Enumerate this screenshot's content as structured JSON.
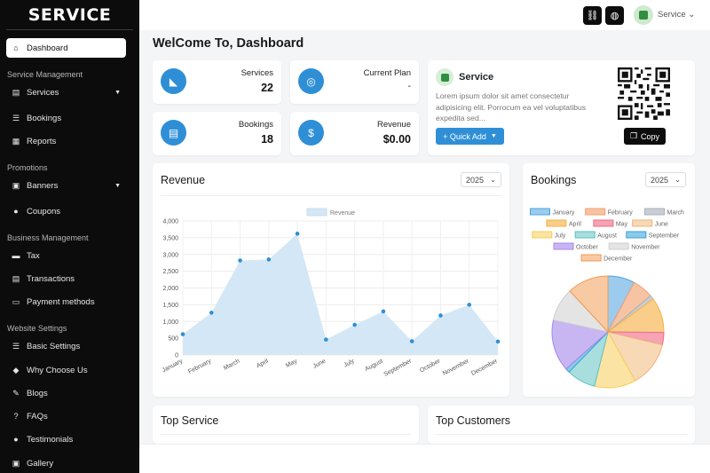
{
  "sidebar": {
    "brand": "SERVICE",
    "dashboard": "Dashboard",
    "sections": {
      "service_management": "Service Management",
      "promotions": "Promotions",
      "business_management": "Business Management",
      "website_settings": "Website Settings"
    },
    "items": {
      "services": "Services",
      "bookings": "Bookings",
      "reports": "Reports",
      "banners": "Banners",
      "coupons": "Coupons",
      "tax": "Tax",
      "transactions": "Transactions",
      "payment_methods": "Payment methods",
      "basic_settings": "Basic Settings",
      "why_choose_us": "Why Choose Us",
      "blogs": "Blogs",
      "faqs": "FAQs",
      "testimonials": "Testimonials",
      "gallery": "Gallery"
    }
  },
  "topbar": {
    "user_name": "Service"
  },
  "main": {
    "title": "WelCome To, Dashboard",
    "stats": {
      "services": {
        "label": "Services",
        "value": "22"
      },
      "current_plan": {
        "label": "Current Plan",
        "value": "-"
      },
      "bookings": {
        "label": "Bookings",
        "value": "18"
      },
      "revenue": {
        "label": "Revenue",
        "value": "$0.00"
      }
    },
    "service_card": {
      "title": "Service",
      "description": "Lorem ipsum dolor sit amet consectetur adipisicing elit. Porrocum ea vel voluptatibus expedita sed...",
      "quick_add": "+ Quick Add",
      "copy": "Copy"
    },
    "revenue_panel": {
      "title": "Revenue",
      "year": "2025"
    },
    "bookings_panel": {
      "title": "Bookings",
      "year": "2025"
    },
    "top_service": "Top Service",
    "top_customers": "Top Customers"
  },
  "colors": {
    "accent": "#2f8fd6",
    "sidebar_bg": "#0c0c0c",
    "area_fill": "#d4e7f6"
  },
  "chart_data": [
    {
      "type": "area",
      "legend": [
        "Revenue"
      ],
      "categories": [
        "January",
        "February",
        "March",
        "April",
        "May",
        "June",
        "July",
        "August",
        "September",
        "October",
        "November",
        "December"
      ],
      "series": [
        {
          "name": "Revenue",
          "values": [
            620,
            1260,
            2820,
            2850,
            3620,
            460,
            900,
            1300,
            410,
            1180,
            1500,
            400
          ]
        }
      ],
      "ylim": [
        0,
        4000
      ],
      "yticks": [
        "0",
        "500",
        "1,000",
        "1,500",
        "2,000",
        "2,500",
        "3,000",
        "3,500",
        "4,000"
      ],
      "grid": true,
      "legend_position": "top"
    },
    {
      "type": "pie",
      "legend_position": "top",
      "labels": [
        "January",
        "February",
        "March",
        "April",
        "May",
        "June",
        "July",
        "August",
        "September",
        "October",
        "November",
        "December"
      ],
      "values": [
        1.3,
        1.0,
        0.2,
        1.7,
        0.6,
        2.2,
        2.0,
        1.4,
        0.2,
        2.5,
        1.6,
        2.0
      ],
      "colors": [
        "#9ccbee",
        "#f7c4a3",
        "#c9cdd4",
        "#f9cd8a",
        "#f6a3b3",
        "#f8d9b5",
        "#fbe3a3",
        "#a8dede",
        "#8ccaea",
        "#c8b6f3",
        "#e4e4e4",
        "#f8caa3"
      ],
      "borders": [
        "#4aa3e0",
        "#f4a06f",
        "#aab0b8",
        "#f5b342",
        "#ee6b86",
        "#f2b27a",
        "#f5cf5a",
        "#5cc0c0",
        "#3aa0d8",
        "#a585ea",
        "#cfcfcf",
        "#f09a55"
      ]
    }
  ]
}
